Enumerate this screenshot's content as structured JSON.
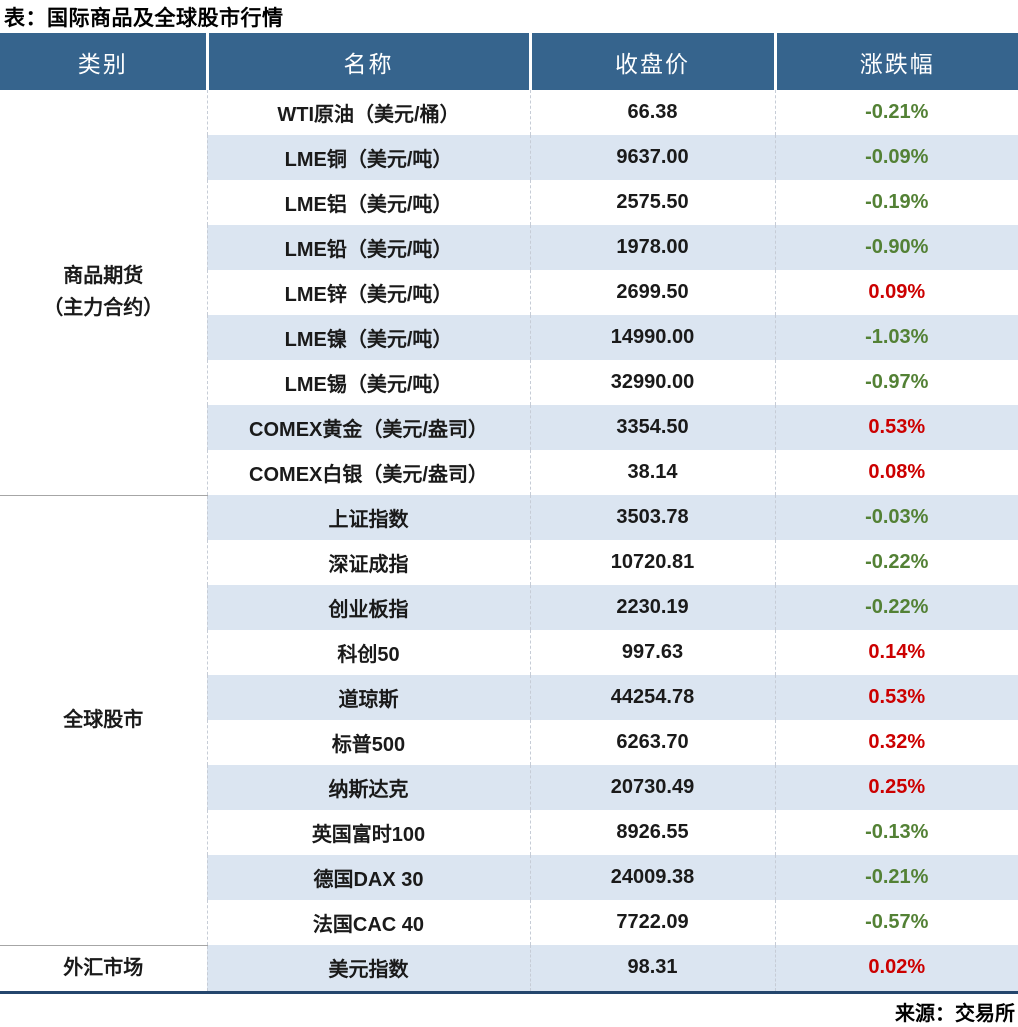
{
  "page_title": "表：国际商品及全球股市行情",
  "footer": {
    "source": "来源：交易所"
  },
  "table": {
    "headers": [
      "类别",
      "名称",
      "收盘价",
      "涨跌幅"
    ],
    "groups": [
      {
        "category": "商品期货\n（主力合约）",
        "rows": [
          {
            "name": "WTI原油（美元/桶）",
            "close": "66.38",
            "change": "-0.21%"
          },
          {
            "name": "LME铜（美元/吨）",
            "close": "9637.00",
            "change": "-0.09%"
          },
          {
            "name": "LME铝（美元/吨）",
            "close": "2575.50",
            "change": "-0.19%"
          },
          {
            "name": "LME铅（美元/吨）",
            "close": "1978.00",
            "change": "-0.90%"
          },
          {
            "name": "LME锌（美元/吨）",
            "close": "2699.50",
            "change": "0.09%"
          },
          {
            "name": "LME镍（美元/吨）",
            "close": "14990.00",
            "change": "-1.03%"
          },
          {
            "name": "LME锡（美元/吨）",
            "close": "32990.00",
            "change": "-0.97%"
          },
          {
            "name": "COMEX黄金（美元/盎司）",
            "close": "3354.50",
            "change": "0.53%"
          },
          {
            "name": "COMEX白银（美元/盎司）",
            "close": "38.14",
            "change": "0.08%"
          }
        ]
      },
      {
        "category": "全球股市",
        "rows": [
          {
            "name": "上证指数",
            "close": "3503.78",
            "change": "-0.03%"
          },
          {
            "name": "深证成指",
            "close": "10720.81",
            "change": "-0.22%"
          },
          {
            "name": "创业板指",
            "close": "2230.19",
            "change": "-0.22%"
          },
          {
            "name": "科创50",
            "close": "997.63",
            "change": "0.14%"
          },
          {
            "name": "道琼斯",
            "close": "44254.78",
            "change": "0.53%"
          },
          {
            "name": "标普500",
            "close": "6263.70",
            "change": "0.32%"
          },
          {
            "name": "纳斯达克",
            "close": "20730.49",
            "change": "0.25%"
          },
          {
            "name": "英国富时100",
            "close": "8926.55",
            "change": "-0.13%"
          },
          {
            "name": "德国DAX 30",
            "close": "24009.38",
            "change": "-0.21%"
          },
          {
            "name": "法国CAC 40",
            "close": "7722.09",
            "change": "-0.57%"
          }
        ]
      },
      {
        "category": "外汇市场",
        "rows": [
          {
            "name": "美元指数",
            "close": "98.31",
            "change": "0.02%"
          }
        ]
      }
    ]
  },
  "colors": {
    "header_bg": "#36648d",
    "alt_row_bg": "#dbe5f1",
    "positive_red": "#cc0000",
    "negative_green": "#538135",
    "bottom_border": "#24466d"
  },
  "chart_data": {
    "type": "table",
    "title": "表：国际商品及全球股市行情",
    "columns": [
      "类别",
      "名称",
      "收盘价",
      "涨跌幅"
    ],
    "rows": [
      [
        "商品期货（主力合约）",
        "WTI原油（美元/桶）",
        66.38,
        "-0.21%"
      ],
      [
        "商品期货（主力合约）",
        "LME铜（美元/吨）",
        9637.0,
        "-0.09%"
      ],
      [
        "商品期货（主力合约）",
        "LME铝（美元/吨）",
        2575.5,
        "-0.19%"
      ],
      [
        "商品期货（主力合约）",
        "LME铅（美元/吨）",
        1978.0,
        "-0.90%"
      ],
      [
        "商品期货（主力合约）",
        "LME锌（美元/吨）",
        2699.5,
        "0.09%"
      ],
      [
        "商品期货（主力合约）",
        "LME镍（美元/吨）",
        14990.0,
        "-1.03%"
      ],
      [
        "商品期货（主力合约）",
        "LME锡（美元/吨）",
        32990.0,
        "-0.97%"
      ],
      [
        "商品期货（主力合约）",
        "COMEX黄金（美元/盎司）",
        3354.5,
        "0.53%"
      ],
      [
        "商品期货（主力合约）",
        "COMEX白银（美元/盎司）",
        38.14,
        "0.08%"
      ],
      [
        "全球股市",
        "上证指数",
        3503.78,
        "-0.03%"
      ],
      [
        "全球股市",
        "深证成指",
        10720.81,
        "-0.22%"
      ],
      [
        "全球股市",
        "创业板指",
        2230.19,
        "-0.22%"
      ],
      [
        "全球股市",
        "科创50",
        997.63,
        "0.14%"
      ],
      [
        "全球股市",
        "道琼斯",
        44254.78,
        "0.53%"
      ],
      [
        "全球股市",
        "标普500",
        6263.7,
        "0.32%"
      ],
      [
        "全球股市",
        "纳斯达克",
        20730.49,
        "0.25%"
      ],
      [
        "全球股市",
        "英国富时100",
        8926.55,
        "-0.13%"
      ],
      [
        "全球股市",
        "德国DAX 30",
        24009.38,
        "-0.21%"
      ],
      [
        "全球股市",
        "法国CAC 40",
        7722.09,
        "-0.57%"
      ],
      [
        "外汇市场",
        "美元指数",
        98.31,
        "0.02%"
      ]
    ],
    "legend": "green = decline (negative), red = rise (positive)",
    "source": "来源：交易所"
  }
}
